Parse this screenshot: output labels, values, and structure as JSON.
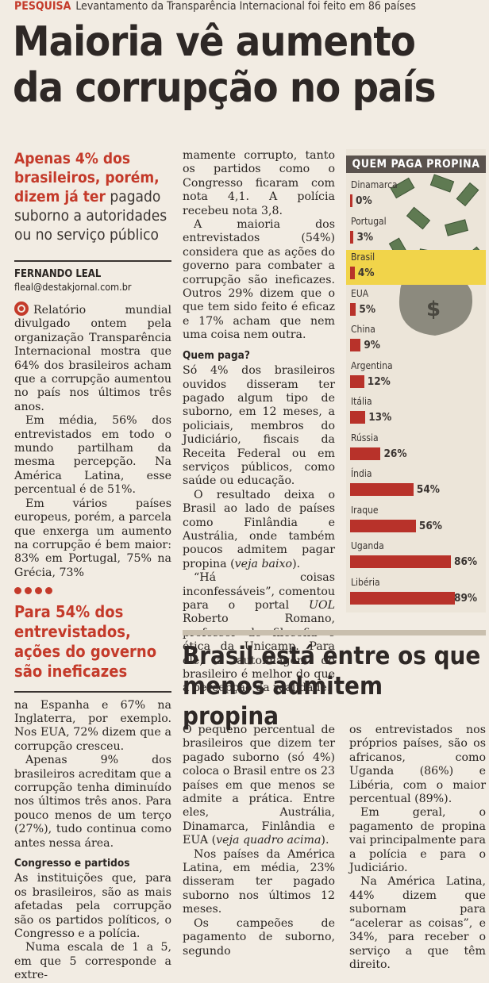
{
  "kicker": {
    "label": "PESQUISA",
    "text": "Levantamento da Transparência Internacional foi feito em 86 países"
  },
  "headline": {
    "line1": "Maioria vê aumento",
    "line2": "da corrupção no país"
  },
  "lede": {
    "highlight1": "Apenas 4% dos",
    "highlight2": "brasileiros, porém,",
    "highlight3": "dizem já ter",
    "rest1": " pagado",
    "rest2": "suborno a autoridades",
    "rest3": "ou no serviço público"
  },
  "byline": {
    "author": "FERNANDO LEAL",
    "email": "fleal@destakjornal.com.br"
  },
  "col1": {
    "p1": "Relatório mundial divulgado ontem pela organização Transparência Internacional mostra que 64% dos brasileiros acham que a corrupção aumentou no país nos últimos três anos.",
    "p2": "Em média, 56% dos entrevistados em todo o mundo partilham da mesma percepção. Na América Latina, esse percentual é de 51%.",
    "p3": "Em vários países europeus, porém, a parcela que enxerga um aumento na corrupção é bem maior: 83% em Portugal, 75% na Grécia, 73%"
  },
  "pullquote": {
    "line1": "Para 54% dos",
    "line2": "entrevistados,",
    "line3": "ações do governo",
    "line4": "são ineficazes"
  },
  "col1b": {
    "p1": "na Espanha e 67% na Inglaterra, por exemplo. Nos EUA, 72% dizem que a corrupção cresceu.",
    "p2": "Apenas 9% dos brasileiros acreditam que a corrupção tenha diminuído nos últimos três anos. Para pouco menos de um terço (27%), tudo continua como antes nessa área.",
    "subhead": "Congresso e partidos",
    "p3": "As instituições que, para os brasileiros, são as mais afetadas pela corrupção são os partidos políticos, o Congresso e a polícia.",
    "p4": "Numa escala de 1 a 5, em que 5 corresponde a extre-"
  },
  "col2": {
    "p1": "mamente corrupto, tanto os partidos como o Congresso ficaram com nota 4,1. A polícia recebeu nota 3,8.",
    "p2": "A maioria dos entrevistados (54%) considera que as ações do governo para combater a corrupção são ineficazes. Outros 29% dizem que o que tem sido feito é eficaz e 17% acham que nem uma coisa nem outra.",
    "subhead": "Quem paga?",
    "p3": "Só 4% dos brasileiros ouvidos disseram ter pagado algum tipo de suborno, em 12 meses, a policiais, membros do Judiciário, fiscais da Receita Federal ou em serviços públicos, como saúde ou educação.",
    "p4a": "O resultado deixa o Brasil ao lado de países como Finlândia e Austrália, onde também poucos admitem pagar propina (",
    "p4em": "veja baixo",
    "p4b": ").",
    "p5a": "“Há coisas inconfessáveis”, comentou para o portal ",
    "p5em": "UOL",
    "p5b": " Roberto Romano, professor de filosofia e ética da Unicamp. Para ele, a autoimagem do brasileiro é melhor do que a percepção da realidade."
  },
  "chart_data": {
    "type": "bar",
    "title": "QUEM PAGA PROPINA",
    "categories": [
      "Dinamarca",
      "Portugal",
      "Brasil",
      "EUA",
      "China",
      "Argentina",
      "Itália",
      "Rússia",
      "Índia",
      "Iraque",
      "Uganda",
      "Libéria"
    ],
    "values": [
      0,
      3,
      4,
      5,
      9,
      12,
      13,
      26,
      54,
      56,
      86,
      89
    ],
    "labels": [
      "0%",
      "3%",
      "4%",
      "5%",
      "9%",
      "12%",
      "13%",
      "26%",
      "54%",
      "56%",
      "86%",
      "89%"
    ],
    "highlight": "Brasil",
    "colors": {
      "bar": "#b8322a",
      "highlight": "#f1d44a"
    }
  },
  "section2": {
    "headline1": "Brasil está entre os que",
    "headline2": "menos admitem propina",
    "colA": {
      "p1a": "O pequeno percentual de brasileiros que dizem ter pagado suborno (só 4%) coloca o Brasil entre os 23 países em que menos se admite a prática. Entre eles, Austrália, Dinamarca, Finlândia e EUA (",
      "p1em": "veja quadro acima",
      "p1b": ").",
      "p2": "Nos países da América Latina, em média, 23% disseram ter pagado suborno nos últimos 12 meses.",
      "p3": "Os campeões de pagamento de suborno, segundo"
    },
    "colB": {
      "p1": "os entrevistados nos próprios países, são os africanos, como Uganda (86%) e Libéria, com o maior percentual (89%).",
      "p2": "Em geral, o pagamento de propina vai principalmente para a polícia e para o Judiciário.",
      "p3": "Na América Latina, 44% dizem que subornam para “acelerar as coisas”, e 34%, para receber o serviço a que têm direito."
    }
  }
}
